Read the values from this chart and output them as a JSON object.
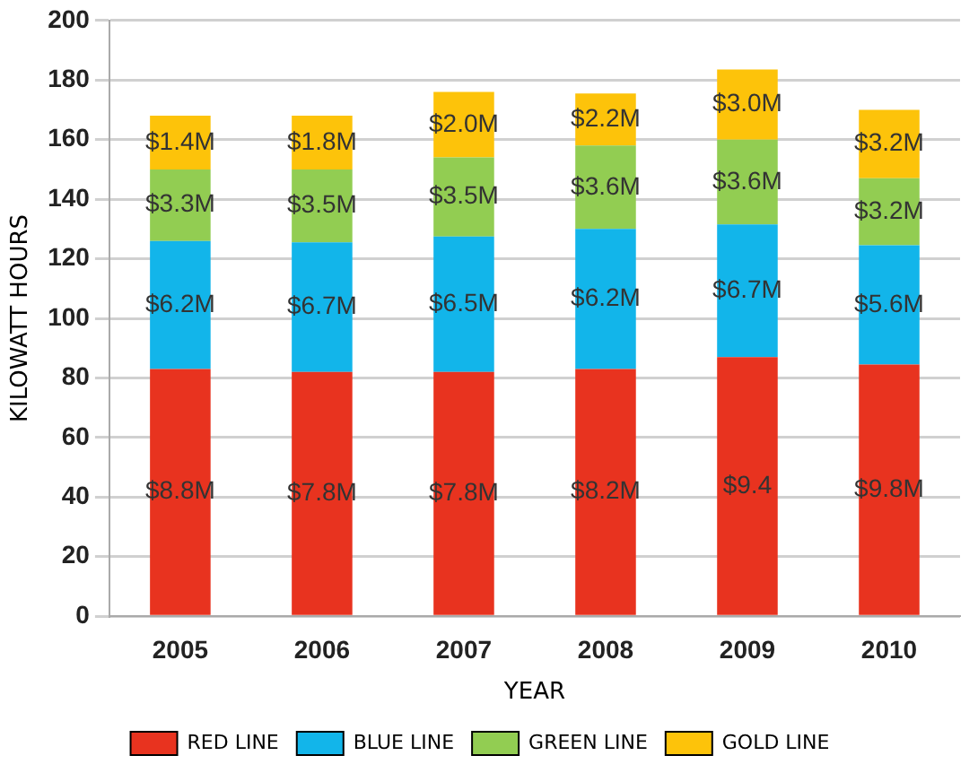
{
  "chart_data": {
    "type": "bar",
    "stacked": true,
    "xlabel": "YEAR",
    "ylabel": "KILOWATT HOURS",
    "categories": [
      "2005",
      "2006",
      "2007",
      "2008",
      "2009",
      "2010"
    ],
    "series": [
      {
        "name": "RED LINE",
        "color": "#e8331f",
        "values": [
          83,
          82,
          82,
          83,
          87,
          84.5
        ]
      },
      {
        "name": "BLUE LINE",
        "color": "#12b5ea",
        "values": [
          43,
          43.5,
          45.5,
          47,
          44.5,
          40
        ]
      },
      {
        "name": "GREEN LINE",
        "color": "#92cd52",
        "values": [
          24,
          24.5,
          26.5,
          28,
          28.5,
          22.5
        ]
      },
      {
        "name": "GOLD LINE",
        "color": "#fdc30a",
        "values": [
          18,
          18,
          22,
          17.5,
          23.5,
          23
        ]
      }
    ],
    "annotations": [
      "$8.8M",
      "$7.8M",
      "$7.8M",
      "$8.2M",
      "$9.4",
      "$9.8M",
      "$6.2M",
      "$6.7M",
      "$6.5M",
      "$6.2M",
      "$6.7M",
      "$5.6M",
      "$3.3M",
      "$3.5M",
      "$3.5M",
      "$3.6M",
      "$3.6M",
      "$3.2M",
      "$1.4M",
      "$1.8M",
      "$2.0M",
      "$2.2M",
      "$3.0M",
      "$3.2M"
    ],
    "ylim": [
      0,
      200
    ],
    "yticks": [
      0,
      20,
      40,
      60,
      80,
      100,
      120,
      140,
      160,
      180,
      200
    ],
    "grid": "y",
    "legend": "bottom"
  }
}
